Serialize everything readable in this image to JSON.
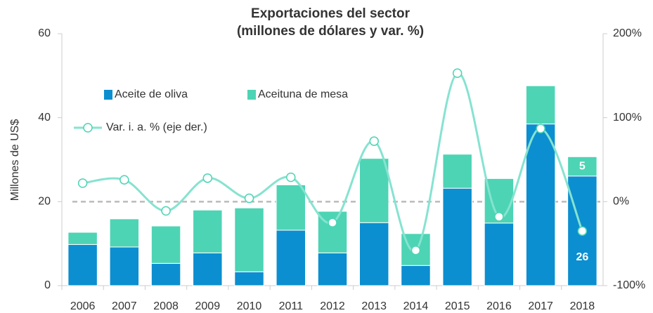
{
  "chart_data": {
    "type": "bar",
    "title": [
      "Exportaciones del sector",
      "(millones de dólares y var. %)"
    ],
    "ylabel": "Millones de US$",
    "categories": [
      "2006",
      "2007",
      "2008",
      "2009",
      "2010",
      "2011",
      "2012",
      "2013",
      "2014",
      "2015",
      "2016",
      "2017",
      "2018"
    ],
    "series": [
      {
        "name": "Aceite de oliva",
        "color": "#0b8fd0",
        "stacked": true,
        "values": [
          9.8,
          9.2,
          5.3,
          7.8,
          3.3,
          13.2,
          7.8,
          15,
          4.8,
          23.2,
          14.9,
          38.5,
          26.1
        ],
        "value_labels": [
          null,
          null,
          null,
          null,
          null,
          null,
          null,
          null,
          null,
          null,
          null,
          null,
          "26"
        ]
      },
      {
        "name": "Aceituna de mesa",
        "color": "#4dd4b4",
        "stacked": true,
        "values": [
          2.9,
          6.7,
          8.9,
          10.2,
          15.2,
          10.8,
          9.9,
          15.3,
          7.6,
          8.1,
          10.6,
          9.1,
          4.6
        ],
        "value_labels": [
          null,
          null,
          null,
          null,
          null,
          null,
          null,
          null,
          null,
          null,
          null,
          null,
          "5"
        ]
      },
      {
        "name": "Var. i. a. % (eje der.)",
        "color": "#86e3d0",
        "type": "line",
        "axis": "y2",
        "values": [
          22,
          26,
          -11,
          28,
          4,
          29,
          -25,
          72,
          -58,
          153,
          -18,
          87,
          -35
        ]
      }
    ],
    "ylim": [
      0,
      60
    ],
    "yticks": [
      0,
      20,
      40,
      60
    ],
    "y2lim": [
      -100,
      200
    ],
    "y2ticks": [
      {
        "value": -100,
        "label": "-100%"
      },
      {
        "value": 0,
        "label": "0%"
      },
      {
        "value": 100,
        "label": "100%"
      },
      {
        "value": 200,
        "label": "200%"
      }
    ],
    "legend": "upper-left",
    "grid": false
  }
}
